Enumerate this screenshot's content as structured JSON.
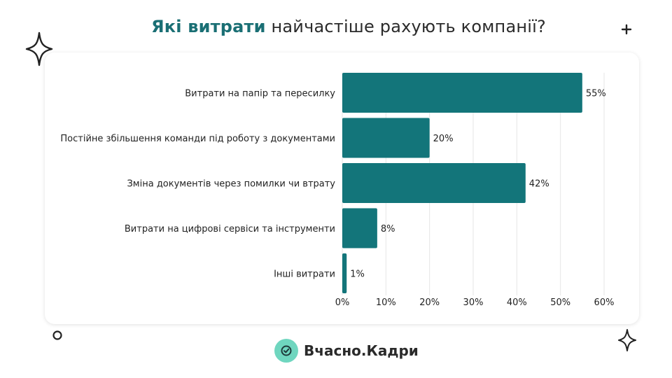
{
  "header": {
    "title_accent": "Які витрати",
    "title_rest": " найчастіше рахують компанії?"
  },
  "footer": {
    "brand": "Вчасно.Кадри",
    "logo_icon": "check-circle-icon"
  },
  "decorations": [
    "sparkle-icon",
    "plus-icon",
    "ring-icon",
    "sparkle-icon"
  ],
  "colors": {
    "bar": "#13757a",
    "accent": "#1a6f74",
    "logo": "#6fd6bf",
    "grid": "#e6e6e6"
  },
  "chart_data": {
    "type": "bar",
    "orientation": "horizontal",
    "categories": [
      "Витрати на папір та пересилку",
      "Постійне збільшення команди під роботу з документами",
      "Зміна документів через помилки чи втрату",
      "Витрати на цифрові сервіси та інструменти",
      "Інші витрати"
    ],
    "values": [
      55,
      20,
      42,
      8,
      1
    ],
    "value_labels": [
      "55%",
      "20%",
      "42%",
      "8%",
      "1%"
    ],
    "xlim": [
      0,
      60
    ],
    "xticks": [
      0,
      10,
      20,
      30,
      40,
      50,
      60
    ],
    "xtick_labels": [
      "0%",
      "10%",
      "20%",
      "30%",
      "40%",
      "50%",
      "60%"
    ],
    "grid": true,
    "title": "Які витрати найчастіше рахують компанії?"
  }
}
